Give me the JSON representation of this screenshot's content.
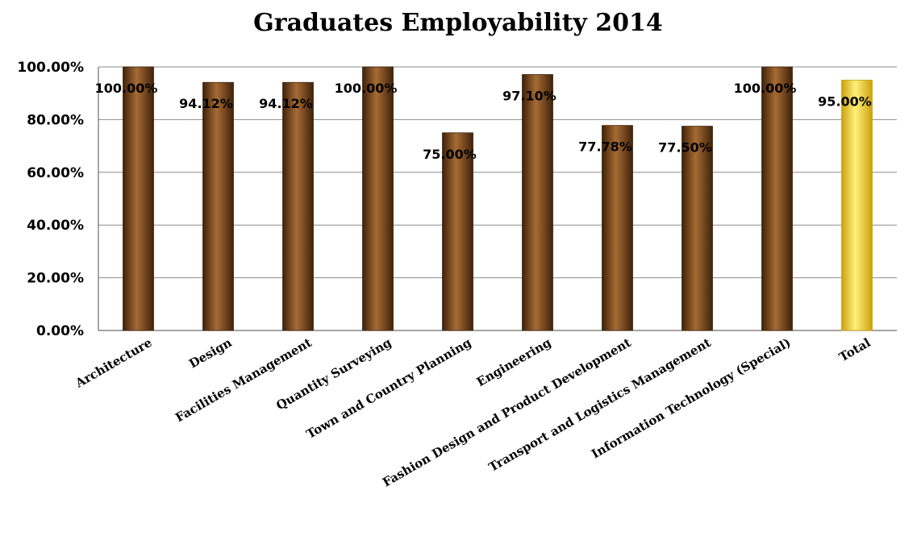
{
  "chart_data": {
    "type": "bar",
    "title": "Graduates Employability 2014",
    "xlabel": "",
    "ylabel": "",
    "categories": [
      "Architecture",
      "Design",
      "Facilities Management",
      "Quantity Surveying",
      "Town and Country Planning",
      "Engineering",
      "Fashion Design and Product Development",
      "Transport and Logistics Management",
      "Information Technology (Special)",
      "Total"
    ],
    "values": [
      100.0,
      94.12,
      94.12,
      100.0,
      75.0,
      97.1,
      77.78,
      77.5,
      100.0,
      95.0
    ],
    "data_labels": [
      "100.00%",
      "94.12%",
      "94.12%",
      "100.00%",
      "75.00%",
      "97.10%",
      "77.78%",
      "77.50%",
      "100.00%",
      "95.00%"
    ],
    "ylim": [
      0,
      100
    ],
    "yticks": [
      0,
      20,
      40,
      60,
      80,
      100
    ],
    "ytick_labels": [
      "0.00%",
      "20.00%",
      "40.00%",
      "60.00%",
      "80.00%",
      "100.00%"
    ],
    "grid": true,
    "legend": "none",
    "colors": {
      "bar": "#7a4a1c",
      "bar_dark": "#3f220a",
      "bar_light": "#a66b34",
      "highlight": "#f2cc1c",
      "highlight_dark": "#caa20e",
      "highlight_light": "#fff07a"
    }
  }
}
